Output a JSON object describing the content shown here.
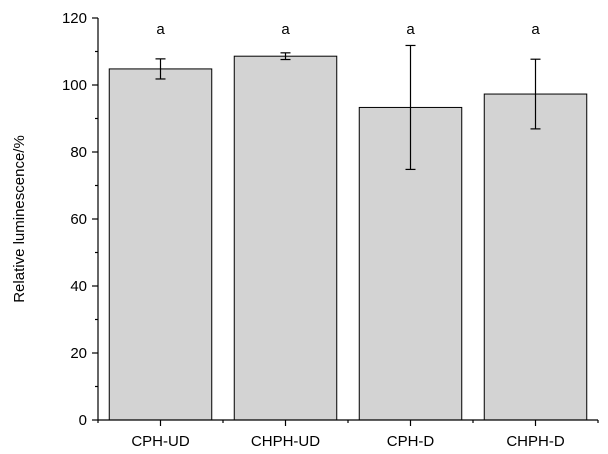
{
  "chart_data": {
    "type": "bar",
    "categories": [
      "CPH-UD",
      "CHPH-UD",
      "CPH-D",
      "CHPH-D"
    ],
    "values": [
      104.8,
      108.6,
      93.3,
      97.3
    ],
    "errors": [
      3,
      1,
      18.5,
      10.4
    ],
    "significance_labels": [
      "a",
      "a",
      "a",
      "a"
    ],
    "title": "",
    "xlabel": "",
    "ylabel": "Relative luminescence/%",
    "ylim": [
      0,
      120
    ],
    "yticks": [
      "0",
      "20",
      "40",
      "60",
      "80",
      "100",
      "120"
    ],
    "grid": false,
    "bar_color": "#d3d3d3",
    "bar_edge_color": "#000000"
  }
}
